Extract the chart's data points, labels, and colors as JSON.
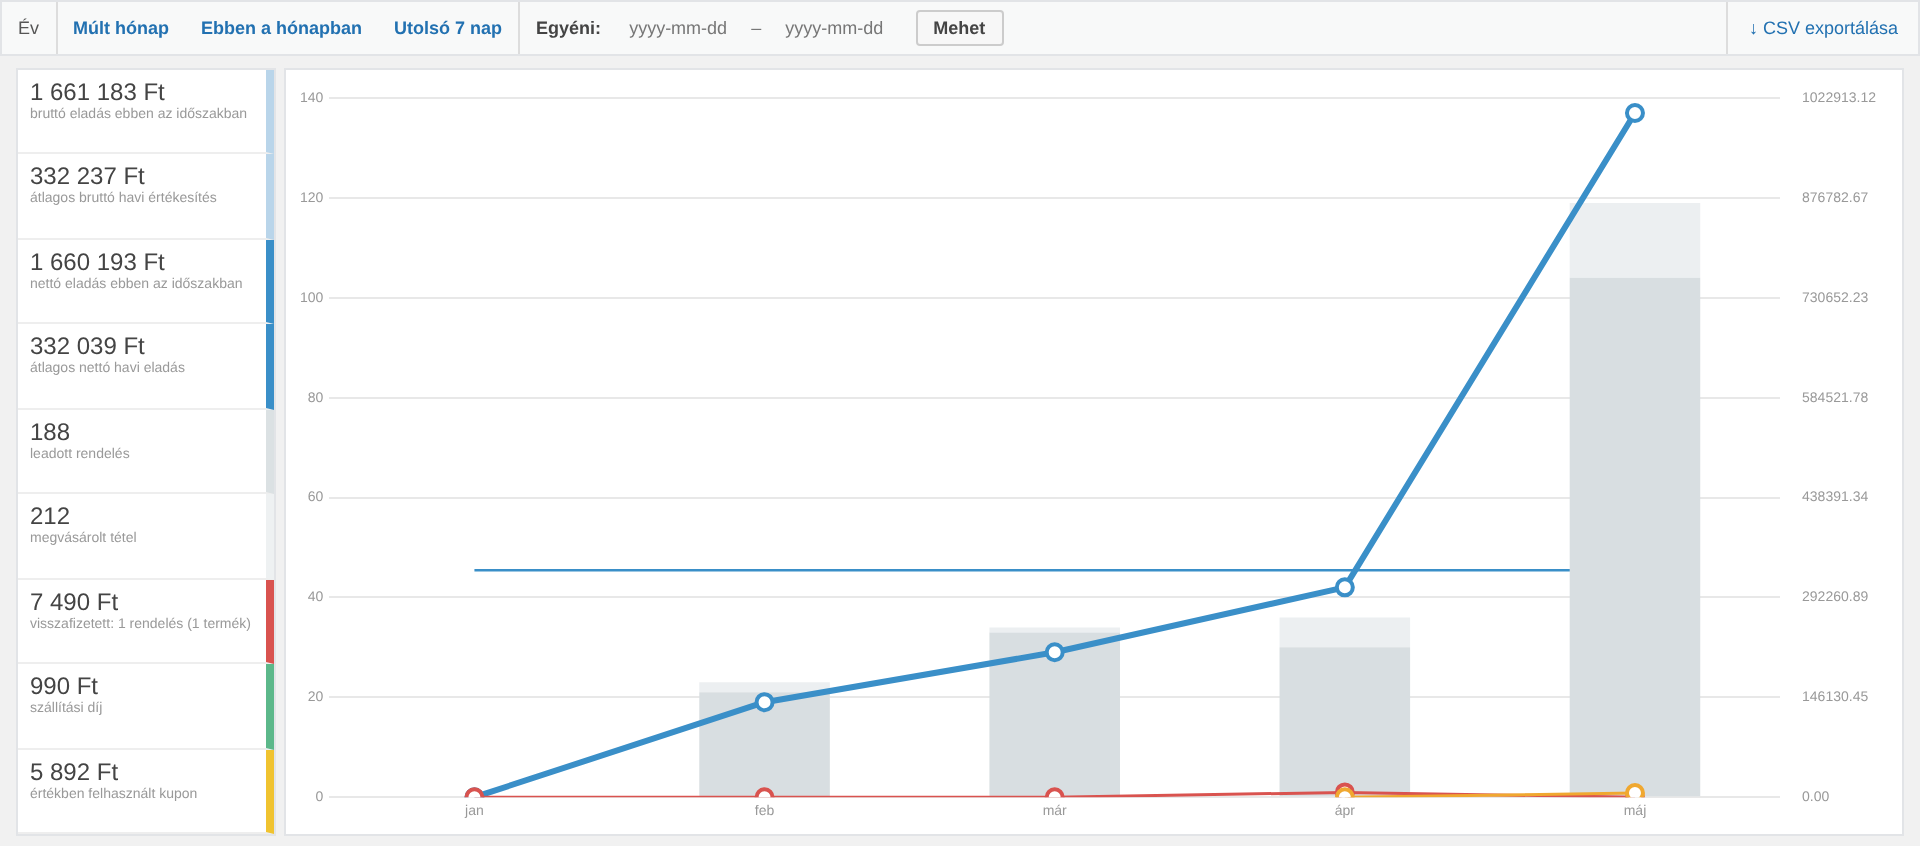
{
  "chart_data": [
    {
      "type": "other",
      "annotations": [
        "Év",
        "Múlt hónap",
        "Ebben a hónapban",
        "Utolsó 7 nap",
        "Egyéni:",
        "yyyy-mm-dd",
        "–",
        "yyyy-mm-dd",
        "Mehet",
        "↓ CSV exportálása"
      ]
    },
    {
      "type": "other",
      "annotations": [
        "1 661 183 Ft",
        "bruttó eladás ebben az időszakban",
        "332 237 Ft",
        "átlagos bruttó havi értékesítés",
        "1 660 193 Ft",
        "nettó eladás ebben az időszakban",
        "332 039 Ft",
        "átlagos nettó havi eladás",
        "188",
        "leadott rendelés",
        "212",
        "megvásárolt tétel",
        "7 490 Ft",
        "visszafizetett: 1 rendelés (1 termék)",
        "990 Ft",
        "szállítási díj",
        "5 892 Ft",
        "értékben felhasznált kupon"
      ],
      "colors": [
        "#b9d5ea",
        "#b9d5ea",
        "#3a8fc8",
        "#3a8fc8",
        "#dbe1e3",
        "#eef1f2",
        "#d9534f",
        "#5cb88a",
        "#f0c330"
      ]
    },
    {
      "type": "bar",
      "categories": [
        "jan",
        "feb",
        "már",
        "ápr",
        "máj"
      ],
      "series": [
        {
          "type": "bar",
          "color": "#d8dee1",
          "values": [
            0,
            21,
            33,
            30,
            104
          ]
        },
        {
          "type": "bar",
          "color": "#eceff1",
          "values": [
            0,
            2,
            1,
            6,
            15
          ]
        },
        {
          "type": "line",
          "axis": "y2",
          "color": "#3a8fc8",
          "values": [
            0,
            139000,
            212000,
            307000,
            1001000
          ]
        },
        {
          "type": "line",
          "axis": "y2",
          "color": "#d9534f",
          "values": [
            0,
            0,
            0,
            7000,
            0
          ]
        },
        {
          "type": "line",
          "axis": "y2",
          "color": "#f0a830",
          "values": [
            null,
            null,
            null,
            0,
            6000
          ]
        }
      ],
      "stacked": true,
      "ylim": [
        0,
        140
      ],
      "yticks": [
        0,
        20,
        40,
        60,
        80,
        100,
        120,
        140
      ],
      "y2lim": [
        0,
        1022913.12
      ],
      "y2ticks": [
        {
          "value": 0,
          "label": "0.00"
        },
        {
          "value": 146130.45,
          "label": "146130.45"
        },
        {
          "value": 292260.89,
          "label": "292260.89"
        },
        {
          "value": 438391.34,
          "label": "438391.34"
        },
        {
          "value": 584521.78,
          "label": "584521.78"
        },
        {
          "value": 730652.23,
          "label": "730652.23"
        },
        {
          "value": 876782.67,
          "label": "876782.67"
        },
        {
          "value": 1022913.12,
          "label": "1022913.12"
        }
      ],
      "ref_lines": [
        {
          "axis": "y2",
          "value": 332039,
          "color": "#3a8fc8"
        }
      ],
      "grid": "y",
      "legend": false,
      "marker": "circle",
      "line_style": "solid"
    }
  ]
}
